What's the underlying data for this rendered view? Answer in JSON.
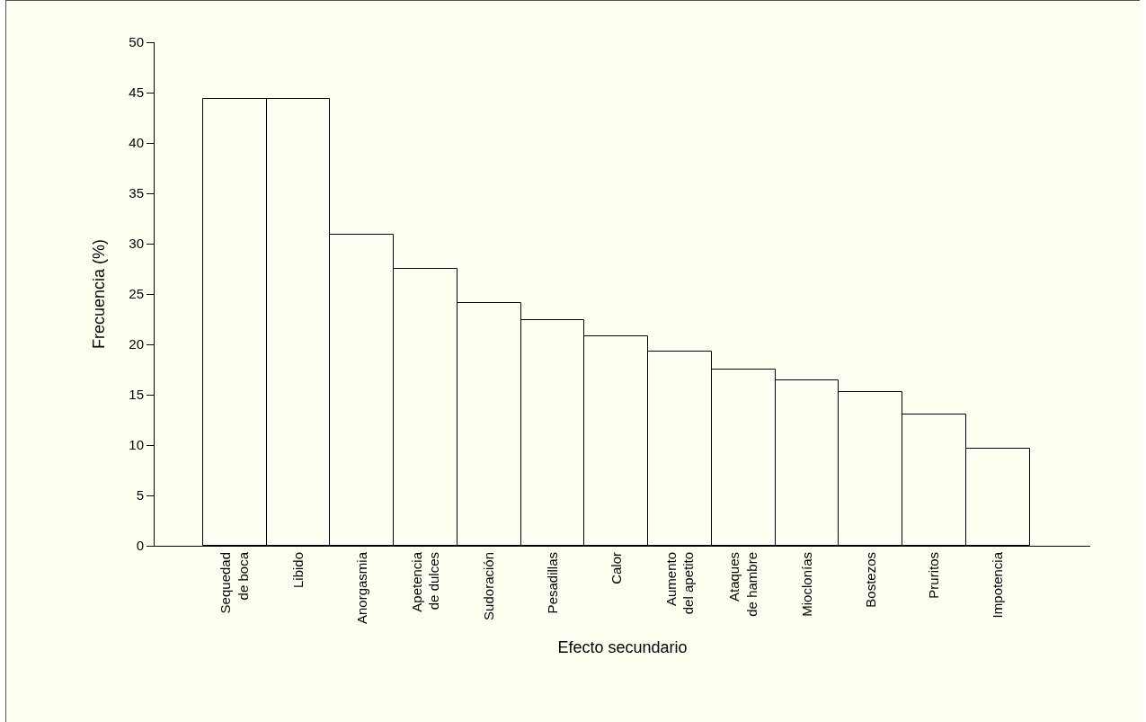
{
  "chart_data": {
    "type": "bar",
    "xlabel": "Efecto secundario",
    "ylabel": "Frecuencia (%)",
    "categories": [
      "Sequedad\nde boca",
      "Libido",
      "Anorgasmia",
      "Apetencia\nde dulces",
      "Sudoración",
      "Pesadillas",
      "Calor",
      "Aumento\ndel apetito",
      "Ataques\nde hambre",
      "Mioclonías",
      "Bostezos",
      "Pruritos",
      "Impotencia"
    ],
    "values": [
      44.4,
      44.4,
      30.9,
      27.5,
      24.1,
      22.4,
      20.8,
      19.3,
      17.5,
      16.4,
      15.3,
      13.0,
      9.6
    ],
    "color": "#fffff2",
    "ylim": [
      0,
      50
    ],
    "yticks": [
      0,
      5,
      10,
      15,
      20,
      25,
      30,
      35,
      40,
      45,
      50
    ],
    "grid": false,
    "legend": false
  }
}
